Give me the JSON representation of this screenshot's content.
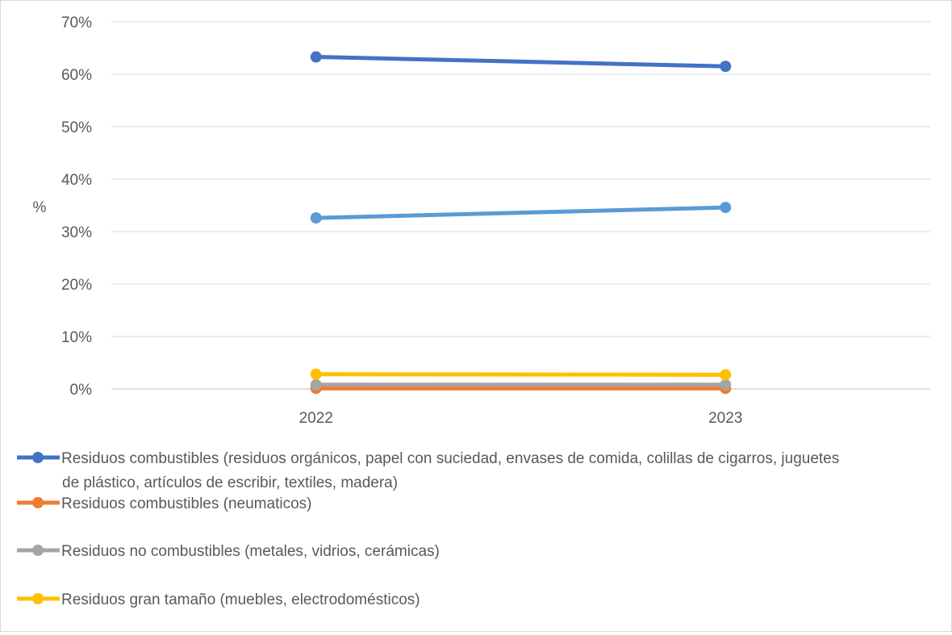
{
  "chart_data": {
    "type": "line",
    "title": "",
    "xlabel": "",
    "ylabel": "%",
    "x": [
      "2022",
      "2023"
    ],
    "ylim": [
      0,
      70
    ],
    "yticks": [
      0,
      10,
      20,
      30,
      40,
      50,
      60,
      70
    ],
    "ytick_labels": [
      "0%",
      "10%",
      "20%",
      "30%",
      "40%",
      "50%",
      "60%",
      "70%"
    ],
    "grid": "horizontal",
    "legend_position": "bottom",
    "series": [
      {
        "name": "Residuos combustibles (residuos orgánicos, papel con suciedad, envases de comida, colillas de cigarros, juguetes de plástico, artículos de escribir, textiles, madera)",
        "legend_lines": [
          "Residuos combustibles (residuos orgánicos, papel con suciedad, envases de comida, colillas de cigarros, juguetes",
          "de plástico, artículos de escribir, textiles, madera)"
        ],
        "values": [
          63.3,
          61.5
        ],
        "color": "#4472C4"
      },
      {
        "name": "Residuos combustibles (neumaticos)",
        "legend_lines": [
          "Residuos combustibles (neumaticos)"
        ],
        "values": [
          0.1,
          0.1
        ],
        "color": "#ED7D31"
      },
      {
        "name": "Residuos no combustibles (metales, vidrios, cerámicas)",
        "legend_lines": [
          "Residuos no combustibles (metales, vidrios, cerámicas)"
        ],
        "values": [
          0.8,
          0.8
        ],
        "color": "#A5A5A5"
      },
      {
        "name": "Residuos gran tamaño (muebles, electrodomésticos)",
        "legend_lines": [
          "Residuos gran tamaño (muebles, electrodomésticos)"
        ],
        "values": [
          2.8,
          2.7
        ],
        "color": "#FFC000"
      },
      {
        "name": "",
        "legend_lines": [],
        "values": [
          32.6,
          34.6
        ],
        "color": "#5B9BD5"
      }
    ]
  }
}
